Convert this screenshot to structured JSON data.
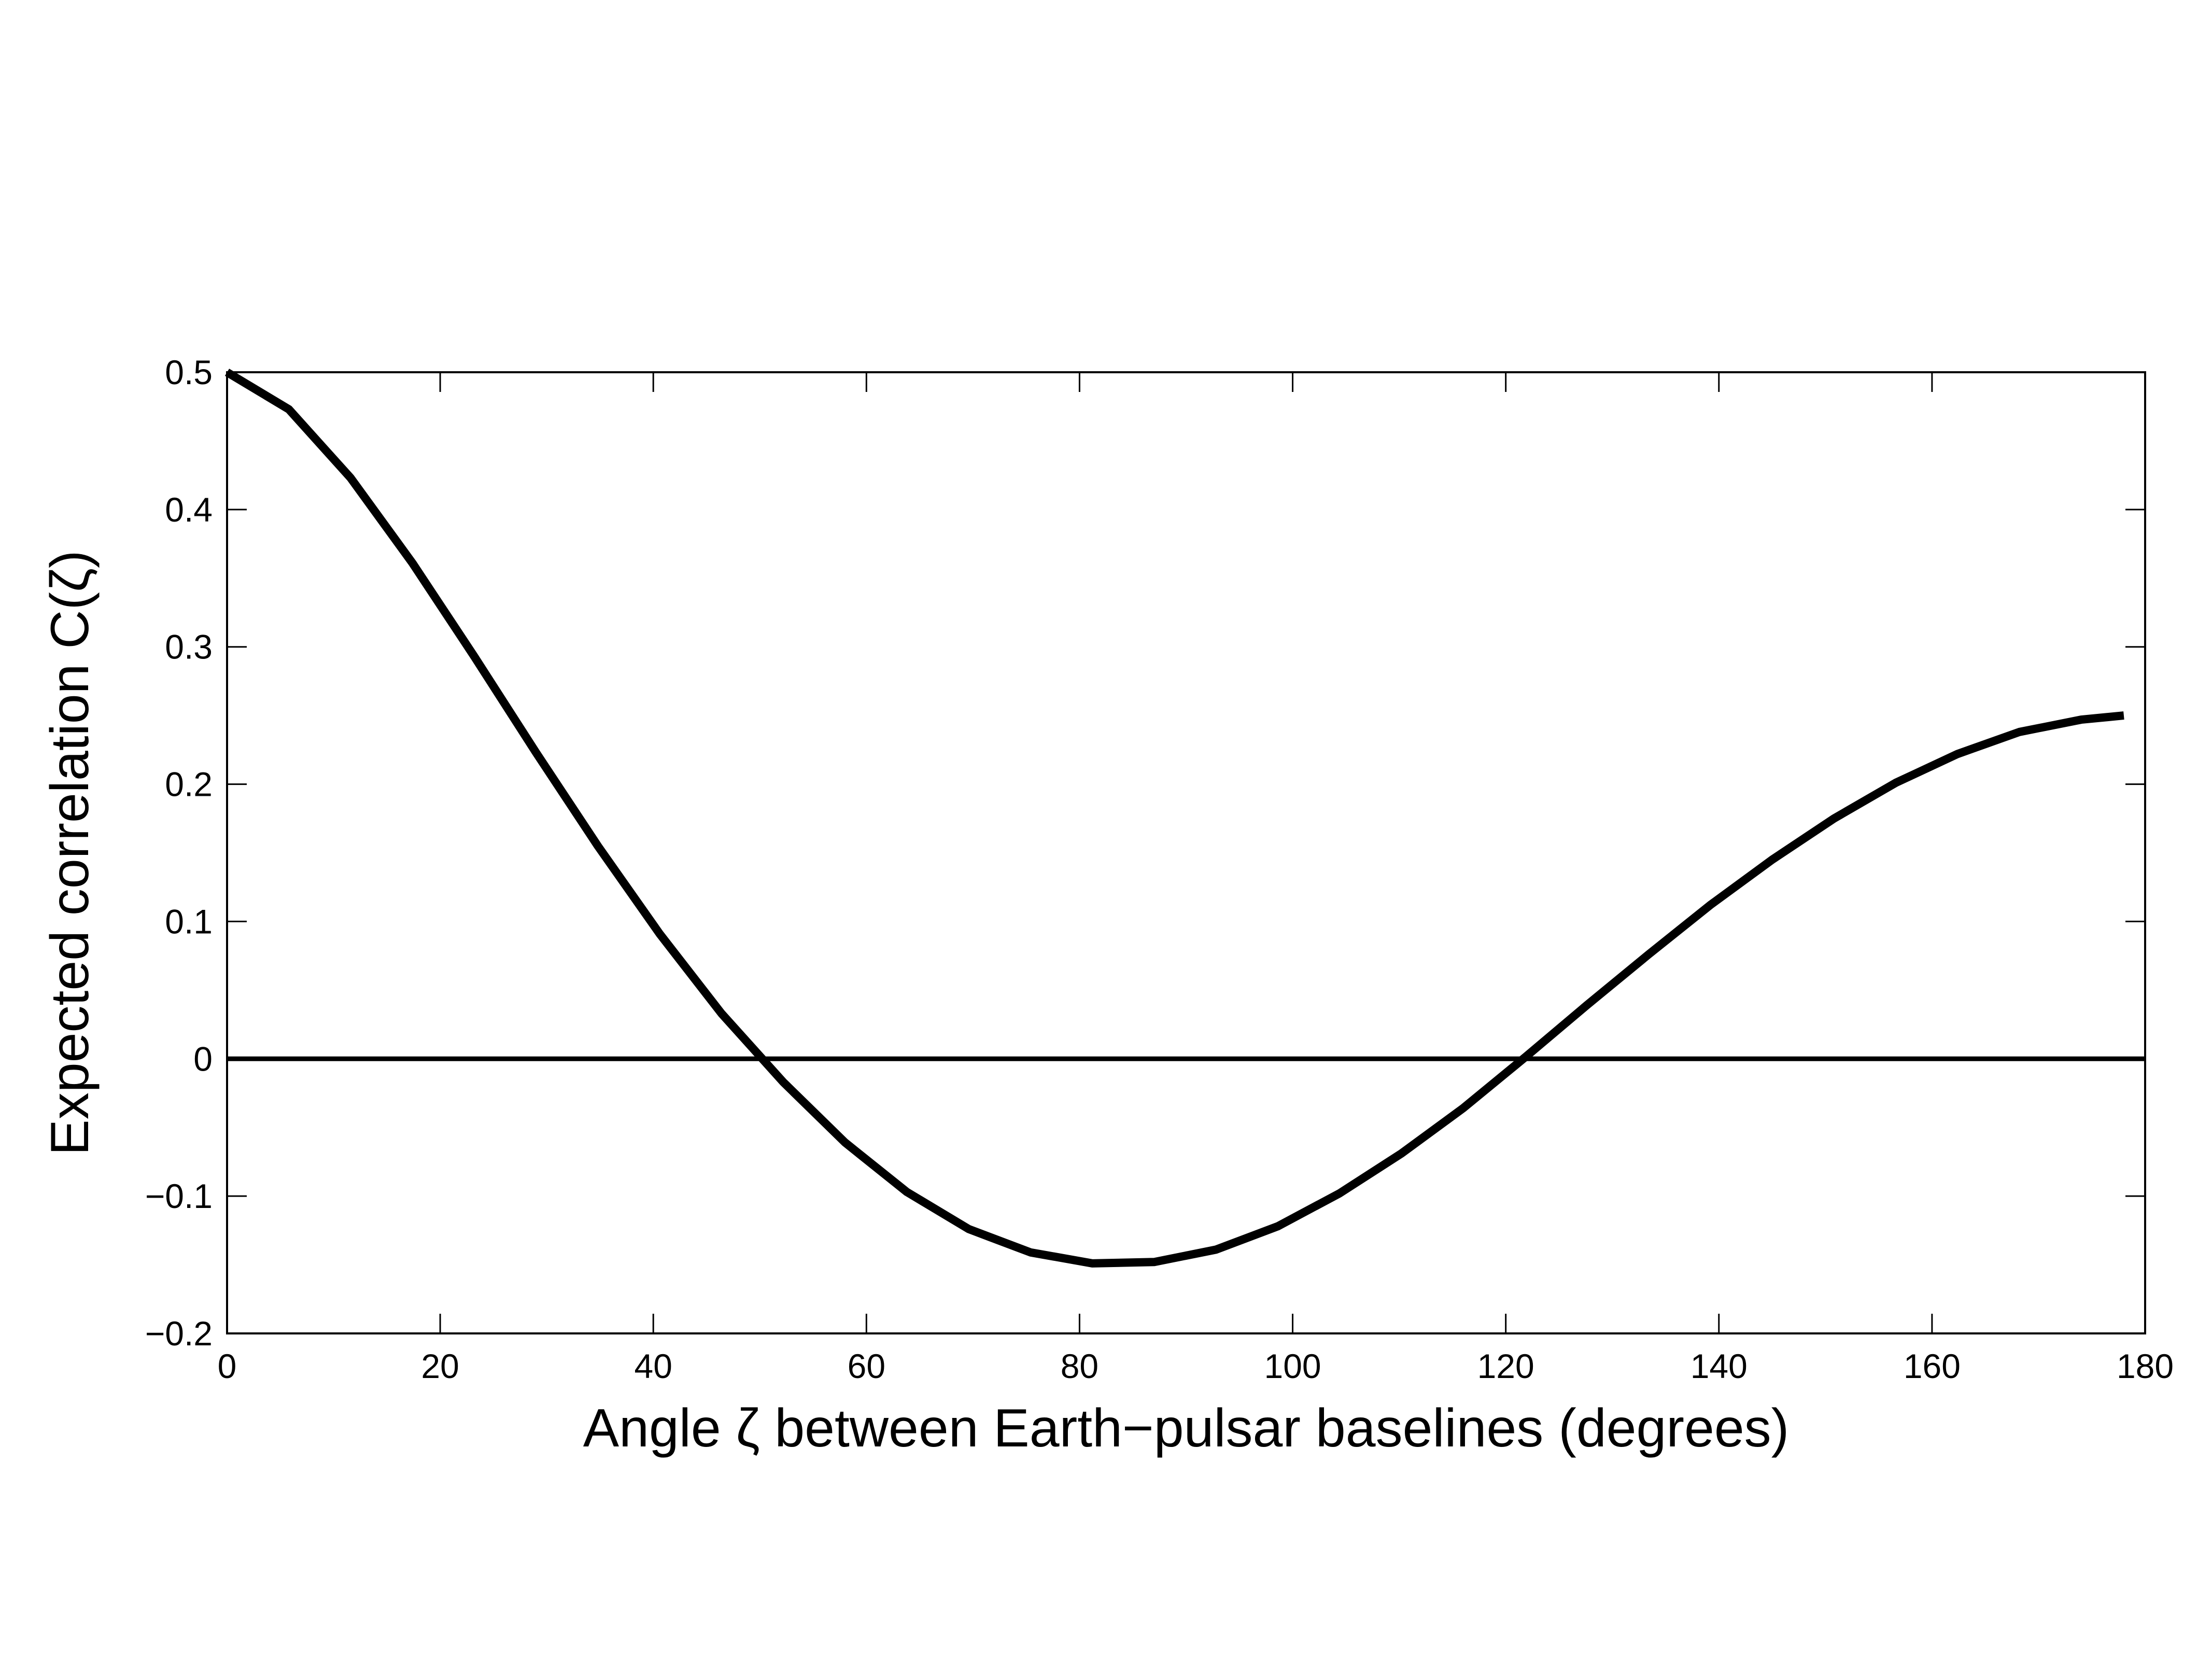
{
  "chart_data": {
    "type": "line",
    "title": "",
    "xlabel": "Angle ζ between Earth−pulsar baselines (degrees)",
    "ylabel": "Expected correlation  C(ζ)",
    "xlim": [
      0,
      180
    ],
    "ylim": [
      -0.2,
      0.5
    ],
    "xticks": [
      0,
      20,
      40,
      60,
      80,
      100,
      120,
      140,
      160,
      180
    ],
    "xtick_labels": [
      "0",
      "20",
      "40",
      "60",
      "80",
      "100",
      "120",
      "140",
      "160",
      "180"
    ],
    "yticks": [
      -0.2,
      -0.1,
      0,
      0.1,
      0.2,
      0.3,
      0.4,
      0.5
    ],
    "ytick_labels": [
      "−0.2",
      "−0.1",
      "0",
      "0.1",
      "0.2",
      "0.3",
      "0.4",
      "0.5"
    ],
    "grid": false,
    "legend": "none",
    "series": [
      {
        "color": "#000000",
        "x": [
          0.0,
          5.8,
          11.6,
          17.4,
          23.2,
          29.0,
          34.8,
          40.6,
          46.4,
          52.2,
          58.0,
          63.8,
          69.6,
          75.4,
          81.2,
          87.0,
          92.8,
          98.6,
          104.4,
          110.2,
          116.0,
          121.8,
          127.6,
          133.4,
          139.2,
          145.0,
          150.8,
          156.6,
          162.4,
          168.2,
          174.0,
          178.0
        ],
        "y": [
          0.5,
          0.473,
          0.423,
          0.361,
          0.293,
          0.223,
          0.155,
          0.091,
          0.033,
          -0.017,
          -0.061,
          -0.097,
          -0.124,
          -0.141,
          -0.149,
          -0.148,
          -0.139,
          -0.122,
          -0.098,
          -0.069,
          -0.036,
          0.001,
          0.039,
          0.076,
          0.112,
          0.145,
          0.175,
          0.201,
          0.222,
          0.238,
          0.247,
          0.25
        ]
      },
      {
        "color": "#000000",
        "x": [
          0,
          180
        ],
        "y": [
          0,
          0
        ]
      }
    ]
  }
}
